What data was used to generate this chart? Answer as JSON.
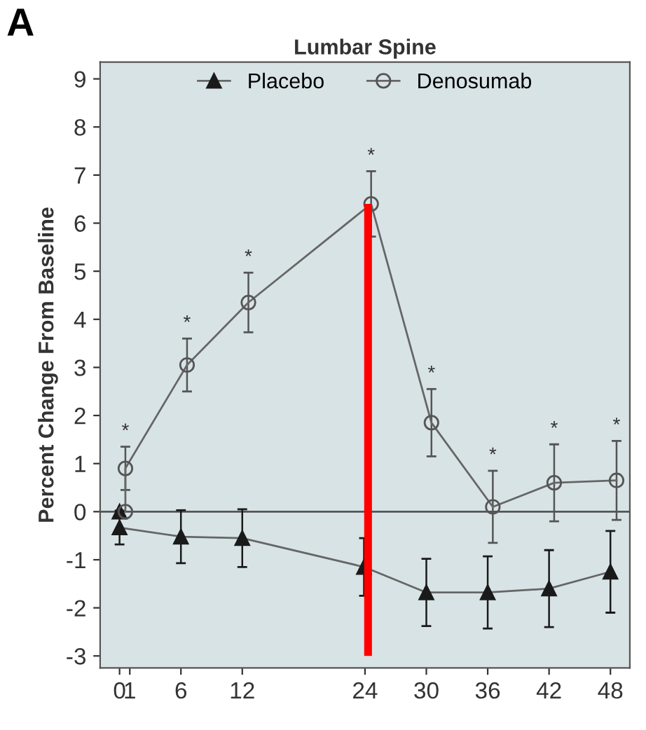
{
  "chart_data": {
    "type": "line",
    "title": "Lumbar Spine",
    "ylabel": "Percent Change From Baseline",
    "xlim": [
      -1.9,
      49.9
    ],
    "ylim": [
      -3.25,
      9.35
    ],
    "xticks": [
      0,
      1,
      6,
      12,
      24,
      30,
      36,
      42,
      48
    ],
    "yticks": [
      -3,
      -2,
      -1,
      0,
      1,
      2,
      3,
      4,
      5,
      6,
      7,
      8,
      9
    ],
    "grid": false,
    "legend": "top",
    "series": [
      {
        "name": "Placebo",
        "color": "#1a1a1a",
        "marker": "triangle",
        "x": [
          0,
          0,
          6,
          12,
          23.9,
          30,
          36,
          42,
          48
        ],
        "values": [
          0,
          -0.33,
          -0.52,
          -0.55,
          -1.15,
          -1.68,
          -1.68,
          -1.6,
          -1.25
        ],
        "errors": [
          null,
          0.35,
          0.55,
          0.6,
          0.6,
          0.7,
          0.75,
          0.8,
          0.85
        ]
      },
      {
        "name": "Denosumab",
        "color": "#555555",
        "marker": "circle",
        "x": [
          0.57,
          0.57,
          6.6,
          12.6,
          24.6,
          30.5,
          36.5,
          42.5,
          48.6
        ],
        "values": [
          0,
          0.9,
          3.05,
          4.35,
          6.4,
          1.85,
          0.1,
          0.6,
          0.65
        ],
        "errors": [
          null,
          0.45,
          0.55,
          0.62,
          0.68,
          0.7,
          0.75,
          0.8,
          0.82
        ]
      }
    ],
    "ref_lines": [
      {
        "axis": "y",
        "value": 0,
        "color": "#555555",
        "line_style": "solid"
      },
      {
        "axis": "x",
        "value": 24.3,
        "color": "#ff0000",
        "line_style": "solid"
      }
    ],
    "annotations": [
      "A",
      {
        "text": "*",
        "x": 0.57,
        "y": 0.9
      },
      {
        "text": "*",
        "x": 6.6,
        "y": 3.05
      },
      {
        "text": "*",
        "x": 12.6,
        "y": 4.35
      },
      {
        "text": "*",
        "x": 24.6,
        "y": 6.4
      },
      {
        "text": "*",
        "x": 30.5,
        "y": 1.85
      },
      {
        "text": "*",
        "x": 36.5,
        "y": 0.1
      },
      {
        "text": "*",
        "x": 42.5,
        "y": 0.6
      },
      {
        "text": "*",
        "x": 48.6,
        "y": 0.65
      }
    ]
  }
}
